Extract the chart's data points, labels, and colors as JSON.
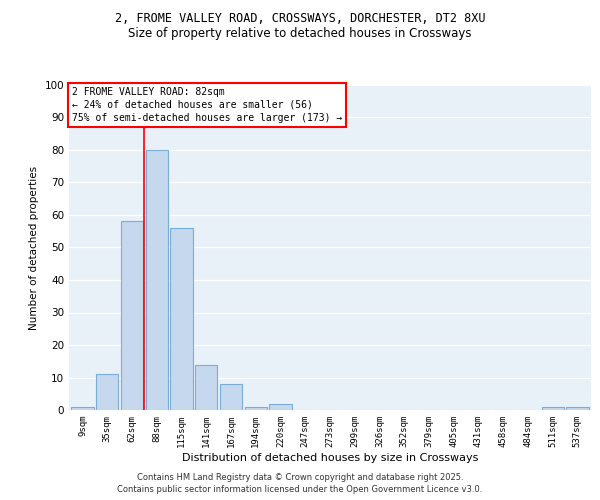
{
  "title_line1": "2, FROME VALLEY ROAD, CROSSWAYS, DORCHESTER, DT2 8XU",
  "title_line2": "Size of property relative to detached houses in Crossways",
  "xlabel": "Distribution of detached houses by size in Crossways",
  "ylabel": "Number of detached properties",
  "categories": [
    "9sqm",
    "35sqm",
    "62sqm",
    "88sqm",
    "115sqm",
    "141sqm",
    "167sqm",
    "194sqm",
    "220sqm",
    "247sqm",
    "273sqm",
    "299sqm",
    "326sqm",
    "352sqm",
    "379sqm",
    "405sqm",
    "431sqm",
    "458sqm",
    "484sqm",
    "511sqm",
    "537sqm"
  ],
  "values": [
    1,
    11,
    58,
    80,
    56,
    14,
    8,
    1,
    2,
    0,
    0,
    0,
    0,
    0,
    0,
    0,
    0,
    0,
    0,
    1,
    1
  ],
  "bar_color": "#c5d8ed",
  "bar_edge_color": "#7aaed6",
  "background_color": "#e8f0f8",
  "grid_color": "#ffffff",
  "red_line_x": 2.5,
  "annotation_line1": "2 FROME VALLEY ROAD: 82sqm",
  "annotation_line2": "← 24% of detached houses are smaller (56)",
  "annotation_line3": "75% of semi-detached houses are larger (173) →",
  "footer_line1": "Contains HM Land Registry data © Crown copyright and database right 2025.",
  "footer_line2": "Contains public sector information licensed under the Open Government Licence v3.0.",
  "ylim": [
    0,
    100
  ],
  "yticks": [
    0,
    10,
    20,
    30,
    40,
    50,
    60,
    70,
    80,
    90,
    100
  ]
}
